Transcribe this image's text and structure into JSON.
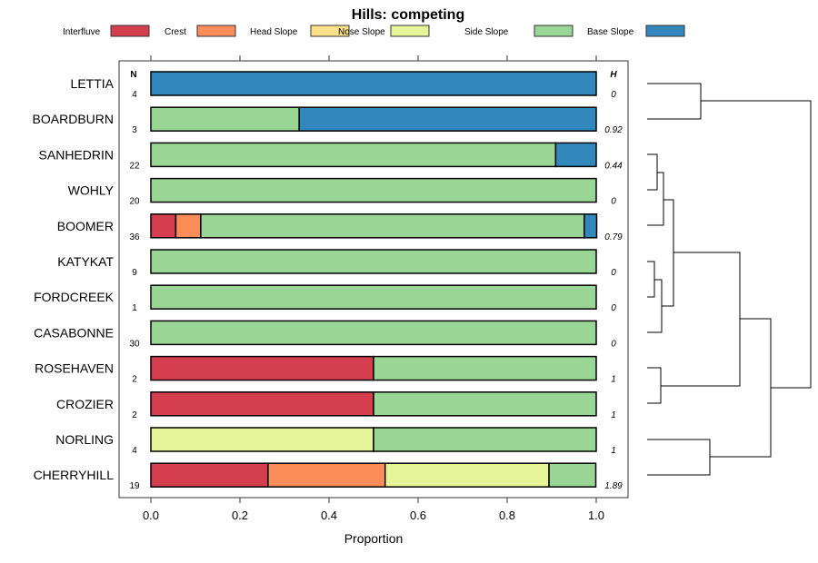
{
  "chart_data": {
    "type": "bar",
    "orientation": "horizontal-stacked",
    "title": "Hills: competing",
    "xlabel": "Proportion",
    "xlim": [
      0,
      1
    ],
    "xticks": [
      "0.0",
      "0.2",
      "0.4",
      "0.6",
      "0.8",
      "1.0"
    ],
    "xtick_values": [
      0,
      0.2,
      0.4,
      0.6,
      0.8,
      1.0
    ],
    "n_header": "N",
    "h_header": "H",
    "legend_position": "top",
    "legend": [
      {
        "name": "Interfluve",
        "color": "#D53E4F"
      },
      {
        "name": "Crest",
        "color": "#FC8D59"
      },
      {
        "name": "Head Slope",
        "color": "#FEE08B"
      },
      {
        "name": "Nose Slope",
        "color": "#E6F598"
      },
      {
        "name": "Side Slope",
        "color": "#99D594"
      },
      {
        "name": "Base Slope",
        "color": "#3288BD"
      }
    ],
    "categories": [
      "LETTIA",
      "BOARDBURN",
      "SANHEDRIN",
      "WOHLY",
      "BOOMER",
      "KATYKAT",
      "FORDCREEK",
      "CASABONNE",
      "ROSEHAVEN",
      "CROZIER",
      "NORLING",
      "CHERRYHILL"
    ],
    "n": [
      "4",
      "3",
      "22",
      "20",
      "36",
      "9",
      "1",
      "30",
      "2",
      "2",
      "4",
      "19"
    ],
    "h": [
      "0",
      "0.92",
      "0.44",
      "0",
      "0.79",
      "0",
      "0",
      "0",
      "1",
      "1",
      "1",
      "1.89"
    ],
    "series": [
      {
        "name": "Interfluve",
        "values": [
          0,
          0,
          0,
          0,
          0.056,
          0,
          0,
          0,
          0.5,
          0.5,
          0,
          0.263
        ]
      },
      {
        "name": "Crest",
        "values": [
          0,
          0,
          0,
          0,
          0.056,
          0,
          0,
          0,
          0,
          0,
          0,
          0.263
        ]
      },
      {
        "name": "Head Slope",
        "values": [
          0,
          0,
          0,
          0,
          0,
          0,
          0,
          0,
          0,
          0,
          0,
          0
        ]
      },
      {
        "name": "Nose Slope",
        "values": [
          0,
          0,
          0,
          0,
          0,
          0,
          0,
          0,
          0,
          0,
          0.5,
          0.368
        ]
      },
      {
        "name": "Side Slope",
        "values": [
          0,
          0.333,
          0.909,
          1,
          0.861,
          1,
          1,
          1,
          0.5,
          0.5,
          0.5,
          0.105
        ]
      },
      {
        "name": "Base Slope",
        "values": [
          1,
          0.667,
          0.091,
          0,
          0.028,
          0,
          0,
          0,
          0,
          0,
          0,
          0
        ]
      }
    ]
  }
}
